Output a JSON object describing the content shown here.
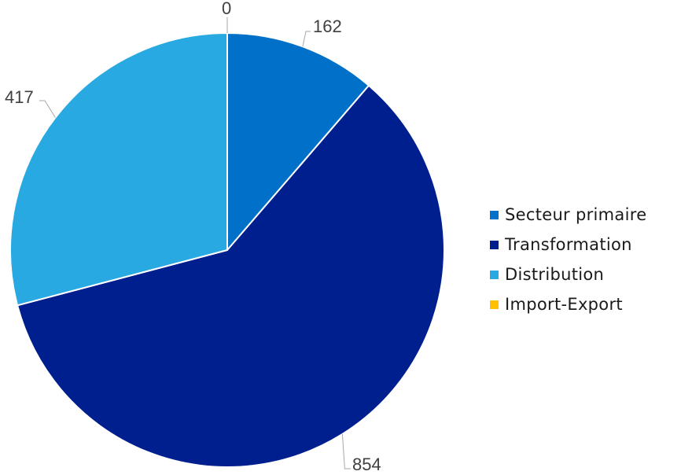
{
  "chart_data": {
    "type": "pie",
    "categories": [
      "Secteur primaire",
      "Transformation",
      "Distribution",
      "Import-Export"
    ],
    "values": [
      162,
      854,
      417,
      0
    ],
    "colors": [
      "#0070C8",
      "#001F8F",
      "#29A9E1",
      "#FFC000"
    ],
    "data_labels": [
      "162",
      "854",
      "417",
      "0"
    ],
    "start_angle_deg": 0,
    "direction": "clockwise",
    "legend": {
      "position": "right",
      "entries": [
        "Secteur primaire",
        "Transformation",
        "Distribution",
        "Import-Export"
      ]
    }
  }
}
